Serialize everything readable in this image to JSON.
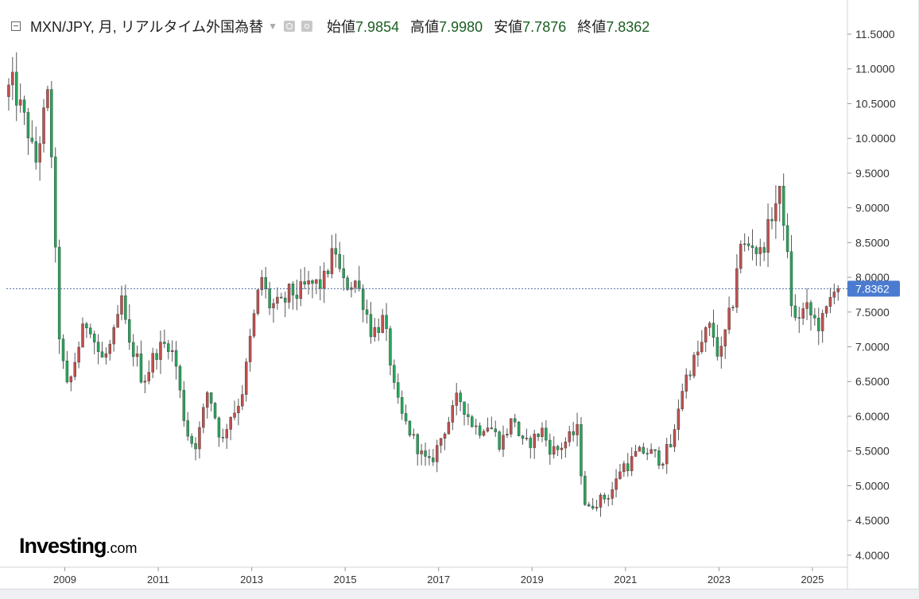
{
  "legend": {
    "title": "MXN/JPY, 月, リアルタイム外国為替",
    "open_label": "始値",
    "open_value": "7.9854",
    "high_label": "高値",
    "high_value": "7.9980",
    "low_label": "安値",
    "low_value": "7.7876",
    "close_label": "終値",
    "close_value": "7.8362"
  },
  "logo": {
    "brand": "Investing",
    "suffix": ".com"
  },
  "colors": {
    "up": "#c0504d",
    "down": "#26a65b",
    "wick": "#555555",
    "price_tag": "#4a7bd0",
    "last_line": "#4a6fa5",
    "axis_text": "#333333"
  },
  "chart_data": {
    "type": "candlestick",
    "title": "MXN/JPY, 月, リアルタイム外国為替",
    "interval": "monthly",
    "x_range": [
      2007.75,
      2025.75
    ],
    "ylim": [
      3.85,
      11.9
    ],
    "y_ticks": [
      "11.5000",
      "11.0000",
      "10.5000",
      "10.0000",
      "9.5000",
      "9.0000",
      "8.5000",
      "8.0000",
      "7.5000",
      "7.0000",
      "6.5000",
      "6.0000",
      "5.5000",
      "5.0000",
      "4.5000",
      "4.0000"
    ],
    "x_ticks": [
      "2009",
      "2011",
      "2013",
      "2015",
      "2017",
      "2019",
      "2021",
      "2023",
      "2025"
    ],
    "last_price": "7.8362",
    "anchors": [
      [
        2007.8,
        10.6
      ],
      [
        2007.95,
        10.8
      ],
      [
        2008.1,
        10.5
      ],
      [
        2008.3,
        10.1
      ],
      [
        2008.45,
        9.6
      ],
      [
        2008.6,
        10.2
      ],
      [
        2008.72,
        10.6
      ],
      [
        2008.8,
        9.8
      ],
      [
        2008.92,
        7.6
      ],
      [
        2009.0,
        6.9
      ],
      [
        2009.15,
        6.35
      ],
      [
        2009.3,
        6.8
      ],
      [
        2009.45,
        7.2
      ],
      [
        2009.6,
        7.4
      ],
      [
        2009.75,
        7.0
      ],
      [
        2009.9,
        6.8
      ],
      [
        2010.05,
        7.0
      ],
      [
        2010.2,
        7.3
      ],
      [
        2010.3,
        7.7
      ],
      [
        2010.45,
        7.0
      ],
      [
        2010.6,
        6.9
      ],
      [
        2010.75,
        6.5
      ],
      [
        2010.9,
        6.7
      ],
      [
        2011.0,
        6.9
      ],
      [
        2011.15,
        7.0
      ],
      [
        2011.3,
        7.05
      ],
      [
        2011.45,
        6.8
      ],
      [
        2011.6,
        6.1
      ],
      [
        2011.75,
        5.65
      ],
      [
        2011.9,
        5.6
      ],
      [
        2012.0,
        5.9
      ],
      [
        2012.15,
        6.4
      ],
      [
        2012.3,
        6.0
      ],
      [
        2012.45,
        5.6
      ],
      [
        2012.6,
        6.0
      ],
      [
        2012.75,
        6.1
      ],
      [
        2012.9,
        6.4
      ],
      [
        2013.05,
        7.1
      ],
      [
        2013.2,
        7.7
      ],
      [
        2013.3,
        8.0
      ],
      [
        2013.45,
        7.6
      ],
      [
        2013.6,
        7.6
      ],
      [
        2013.75,
        7.6
      ],
      [
        2013.9,
        7.8
      ],
      [
        2014.05,
        7.75
      ],
      [
        2014.2,
        7.85
      ],
      [
        2014.4,
        7.9
      ],
      [
        2014.6,
        7.9
      ],
      [
        2014.8,
        8.3
      ],
      [
        2014.9,
        8.4
      ],
      [
        2015.0,
        7.9
      ],
      [
        2015.15,
        7.9
      ],
      [
        2015.3,
        7.95
      ],
      [
        2015.5,
        7.6
      ],
      [
        2015.65,
        7.2
      ],
      [
        2015.8,
        7.3
      ],
      [
        2015.9,
        7.4
      ],
      [
        2016.05,
        6.8
      ],
      [
        2016.15,
        6.3
      ],
      [
        2016.3,
        6.0
      ],
      [
        2016.45,
        5.8
      ],
      [
        2016.6,
        5.6
      ],
      [
        2016.75,
        5.4
      ],
      [
        2016.9,
        5.3
      ],
      [
        2017.05,
        5.55
      ],
      [
        2017.2,
        5.8
      ],
      [
        2017.35,
        6.0
      ],
      [
        2017.5,
        6.3
      ],
      [
        2017.65,
        6.1
      ],
      [
        2017.8,
        5.9
      ],
      [
        2017.95,
        5.8
      ],
      [
        2018.1,
        5.9
      ],
      [
        2018.25,
        5.8
      ],
      [
        2018.4,
        5.6
      ],
      [
        2018.55,
        5.8
      ],
      [
        2018.7,
        6.0
      ],
      [
        2018.85,
        5.6
      ],
      [
        2019.0,
        5.6
      ],
      [
        2019.15,
        5.7
      ],
      [
        2019.3,
        5.8
      ],
      [
        2019.45,
        5.55
      ],
      [
        2019.6,
        5.5
      ],
      [
        2019.75,
        5.6
      ],
      [
        2019.9,
        5.7
      ],
      [
        2020.05,
        5.8
      ],
      [
        2020.15,
        5.1
      ],
      [
        2020.25,
        4.6
      ],
      [
        2020.4,
        4.75
      ],
      [
        2020.55,
        4.8
      ],
      [
        2020.7,
        4.85
      ],
      [
        2020.85,
        5.0
      ],
      [
        2021.0,
        5.3
      ],
      [
        2021.15,
        5.3
      ],
      [
        2021.3,
        5.45
      ],
      [
        2021.5,
        5.5
      ],
      [
        2021.7,
        5.45
      ],
      [
        2021.85,
        5.35
      ],
      [
        2022.0,
        5.55
      ],
      [
        2022.1,
        5.6
      ],
      [
        2022.25,
        6.3
      ],
      [
        2022.4,
        6.6
      ],
      [
        2022.55,
        6.8
      ],
      [
        2022.7,
        7.0
      ],
      [
        2022.85,
        7.3
      ],
      [
        2022.95,
        7.2
      ],
      [
        2023.1,
        6.8
      ],
      [
        2023.25,
        7.3
      ],
      [
        2023.4,
        7.7
      ],
      [
        2023.5,
        8.4
      ],
      [
        2023.65,
        8.45
      ],
      [
        2023.8,
        8.5
      ],
      [
        2023.95,
        8.3
      ],
      [
        2024.1,
        8.6
      ],
      [
        2024.25,
        9.0
      ],
      [
        2024.4,
        9.2
      ],
      [
        2024.5,
        8.7
      ],
      [
        2024.6,
        7.8
      ],
      [
        2024.7,
        7.35
      ],
      [
        2024.85,
        7.5
      ],
      [
        2024.95,
        7.55
      ],
      [
        2025.1,
        7.4
      ],
      [
        2025.25,
        7.3
      ],
      [
        2025.35,
        7.45
      ],
      [
        2025.45,
        7.65
      ],
      [
        2025.55,
        7.9
      ],
      [
        2025.6,
        7.8362
      ]
    ]
  }
}
